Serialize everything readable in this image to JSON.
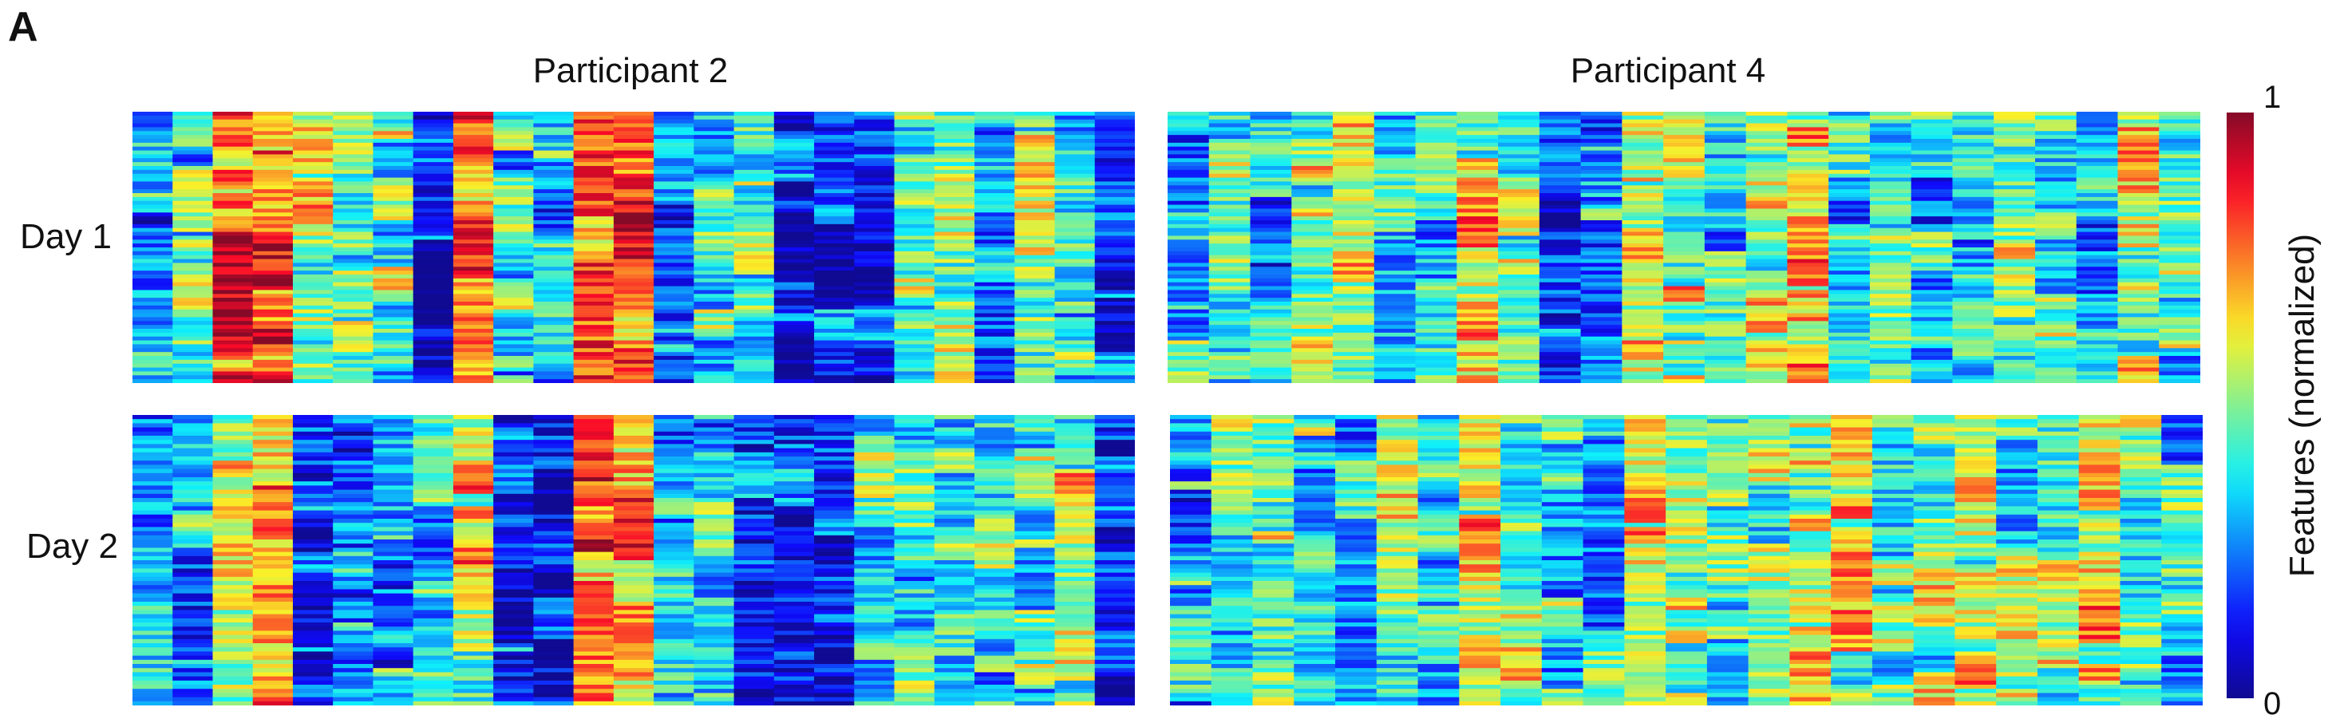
{
  "panel_letter": "A",
  "chart_data": {
    "type": "heatmap",
    "columns": [
      "Participant 2",
      "Participant 4"
    ],
    "rows": [
      "Day 1",
      "Day 2"
    ],
    "colorbar": {
      "label": "Features (normalized)",
      "min_label": "0",
      "max_label": "1",
      "range": [
        0,
        1
      ],
      "colormap": "jet"
    },
    "panels": [
      {
        "participant": "Participant 2",
        "day": "Day 1",
        "column_means": [
          0.25,
          0.42,
          0.8,
          0.75,
          0.55,
          0.5,
          0.45,
          0.12,
          0.85,
          0.4,
          0.35,
          0.82,
          0.78,
          0.25,
          0.38,
          0.45,
          0.12,
          0.18,
          0.2,
          0.42,
          0.45,
          0.3,
          0.5,
          0.35,
          0.15
        ]
      },
      {
        "participant": "Participant 2",
        "day": "Day 2",
        "column_means": [
          0.22,
          0.3,
          0.55,
          0.65,
          0.2,
          0.25,
          0.3,
          0.35,
          0.6,
          0.15,
          0.15,
          0.8,
          0.75,
          0.3,
          0.35,
          0.2,
          0.15,
          0.18,
          0.38,
          0.4,
          0.45,
          0.38,
          0.42,
          0.55,
          0.15
        ]
      },
      {
        "participant": "Participant 4",
        "day": "Day 1",
        "column_means": [
          0.35,
          0.45,
          0.3,
          0.5,
          0.55,
          0.3,
          0.4,
          0.6,
          0.45,
          0.2,
          0.3,
          0.55,
          0.6,
          0.4,
          0.55,
          0.6,
          0.35,
          0.5,
          0.35,
          0.4,
          0.55,
          0.45,
          0.3,
          0.55,
          0.4
        ]
      },
      {
        "participant": "Participant 4",
        "day": "Day 2",
        "column_means": [
          0.3,
          0.45,
          0.5,
          0.4,
          0.3,
          0.55,
          0.35,
          0.6,
          0.5,
          0.4,
          0.35,
          0.6,
          0.55,
          0.45,
          0.5,
          0.6,
          0.55,
          0.45,
          0.5,
          0.55,
          0.45,
          0.5,
          0.6,
          0.45,
          0.35
        ]
      }
    ]
  }
}
